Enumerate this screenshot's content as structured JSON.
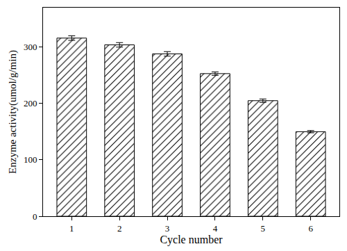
{
  "chart_data": {
    "type": "bar",
    "x_label": "Cycle number",
    "y_label": "Enzyme activity(umol/g/min)",
    "categories": [
      "1",
      "2",
      "3",
      "4",
      "5",
      "6"
    ],
    "values": [
      316,
      304,
      288,
      253,
      205,
      150
    ],
    "errors": [
      4,
      4,
      4,
      3,
      3,
      2
    ],
    "color": "#ffffff",
    "ylim": [
      0,
      370
    ],
    "yticks": [
      0,
      100,
      200,
      300
    ],
    "grid": false
  }
}
